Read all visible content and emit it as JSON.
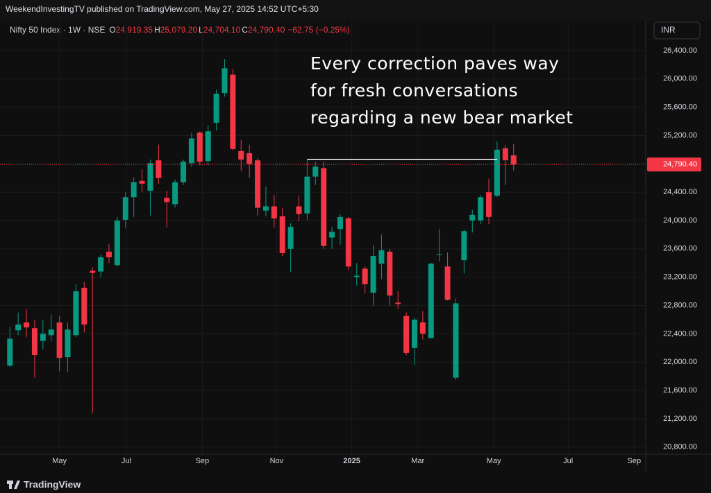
{
  "header": {
    "published": "WeekendInvestingTV published on TradingView.com, May 27, 2025 14:52 UTC+5:30",
    "symbol": "Nifty 50 Index · 1W · NSE",
    "ohlc": [
      {
        "key": "O",
        "value": "24,919.35"
      },
      {
        "key": "H",
        "value": "25,079.20"
      },
      {
        "key": "L",
        "value": "24,704.10"
      },
      {
        "key": "C",
        "value": "24,790.40"
      }
    ],
    "change": "−62.75 (−0.25%)",
    "currency": "INR"
  },
  "footer": {
    "brand": "TradingView"
  },
  "chart_data": {
    "type": "candlestick",
    "annotation": [
      "Every correction paves way",
      "for fresh conversations",
      "regarding a new bear market"
    ],
    "up_color": "#089981",
    "down_color": "#f23645",
    "open": [
      21950,
      22450,
      22560,
      22480,
      22300,
      22380,
      22560,
      22070,
      22380,
      23050,
      23290,
      23280,
      23560,
      23370,
      24010,
      24330,
      24560,
      24420,
      24850,
      24320,
      24230,
      24540,
      24810,
      25240,
      24840,
      25380,
      25800,
      26060,
      24980,
      24950,
      24850,
      24140,
      24200,
      24060,
      23600,
      24200,
      24100,
      24620,
      24740,
      23760,
      23880,
      24030,
      23200,
      23320,
      22980,
      23390,
      23560,
      22840,
      22650,
      22200,
      22560,
      22340,
      23510,
      23350,
      21780,
      23440,
      24000,
      24000,
      24400,
      24350,
      25020,
      24919.35
    ],
    "high": [
      22500,
      22700,
      22750,
      22600,
      22600,
      22670,
      22650,
      22560,
      23100,
      23130,
      23340,
      23520,
      23670,
      24050,
      24400,
      24610,
      24720,
      24860,
      25070,
      24420,
      24580,
      24860,
      25240,
      25260,
      25340,
      25850,
      26280,
      26140,
      25140,
      25070,
      24880,
      24480,
      24360,
      24180,
      23960,
      24350,
      24860,
      24830,
      24830,
      23910,
      24090,
      24050,
      23400,
      23350,
      23650,
      23800,
      23600,
      23000,
      22700,
      22630,
      22720,
      23400,
      23880,
      23550,
      22900,
      23870,
      24150,
      24360,
      24590,
      25120,
      25060,
      25079.2
    ],
    "low": [
      21930,
      22380,
      22350,
      21780,
      22180,
      22300,
      21870,
      21860,
      22350,
      22420,
      21280,
      23200,
      23400,
      23350,
      23900,
      24050,
      24400,
      24070,
      24520,
      23900,
      24180,
      24500,
      24760,
      24780,
      24780,
      25270,
      25750,
      24990,
      24700,
      24600,
      24070,
      24060,
      23900,
      23500,
      23270,
      23990,
      24000,
      24500,
      23600,
      23600,
      23660,
      23300,
      23080,
      22970,
      22800,
      23170,
      22800,
      22750,
      22100,
      21960,
      22320,
      22330,
      23420,
      22870,
      21750,
      23250,
      23830,
      23950,
      23950,
      24330,
      24500,
      24704.1
    ],
    "close": [
      22330,
      22530,
      22490,
      22100,
      22400,
      22460,
      22060,
      22460,
      23000,
      22530,
      23260,
      23480,
      23480,
      24000,
      24330,
      24540,
      24520,
      24810,
      24600,
      24260,
      24540,
      24830,
      25160,
      24830,
      25260,
      25790,
      26150,
      25010,
      24860,
      24800,
      24180,
      24200,
      24030,
      23540,
      23910,
      24090,
      24620,
      24760,
      23640,
      23840,
      24050,
      23350,
      23220,
      23100,
      23500,
      23580,
      22940,
      22820,
      22130,
      22600,
      22400,
      23390,
      23520,
      22880,
      22830,
      23850,
      24080,
      24330,
      24050,
      25000,
      24850,
      24790.4
    ],
    "last_price": {
      "value": 24790.4,
      "label": "24,790.40"
    },
    "level": {
      "value": 24860,
      "start": 36,
      "end": 59
    },
    "xlim": [
      -1.2,
      77
    ],
    "ylim": [
      20700,
      26820
    ],
    "xticks": [
      {
        "value": 6,
        "label": "May"
      },
      {
        "value": 14.1,
        "label": "Jul"
      },
      {
        "value": 23.3,
        "label": "Sep"
      },
      {
        "value": 32.3,
        "label": "Nov"
      },
      {
        "value": 41.4,
        "label": "2025"
      },
      {
        "value": 49.4,
        "label": "Mar"
      },
      {
        "value": 58.6,
        "label": "May"
      },
      {
        "value": 67.6,
        "label": "Jul"
      },
      {
        "value": 75.6,
        "label": "Sep"
      }
    ],
    "yticks": [
      {
        "value": 20800,
        "label": "20,800.00"
      },
      {
        "value": 21200,
        "label": "21,200.00"
      },
      {
        "value": 21600,
        "label": "21,600.00"
      },
      {
        "value": 22000,
        "label": "22,000.00"
      },
      {
        "value": 22400,
        "label": "22,400.00"
      },
      {
        "value": 22800,
        "label": "22,800.00"
      },
      {
        "value": 23200,
        "label": "23,200.00"
      },
      {
        "value": 23600,
        "label": "23,600.00"
      },
      {
        "value": 24000,
        "label": "24,000.00"
      },
      {
        "value": 24400,
        "label": "24,400.00"
      },
      {
        "value": 24800,
        "label": "24,800.00"
      },
      {
        "value": 25200,
        "label": "25,200.00"
      },
      {
        "value": 25600,
        "label": "25,600.00"
      },
      {
        "value": 26000,
        "label": "26,000.00"
      },
      {
        "value": 26400,
        "label": "26,400.00"
      }
    ],
    "grid": true
  }
}
